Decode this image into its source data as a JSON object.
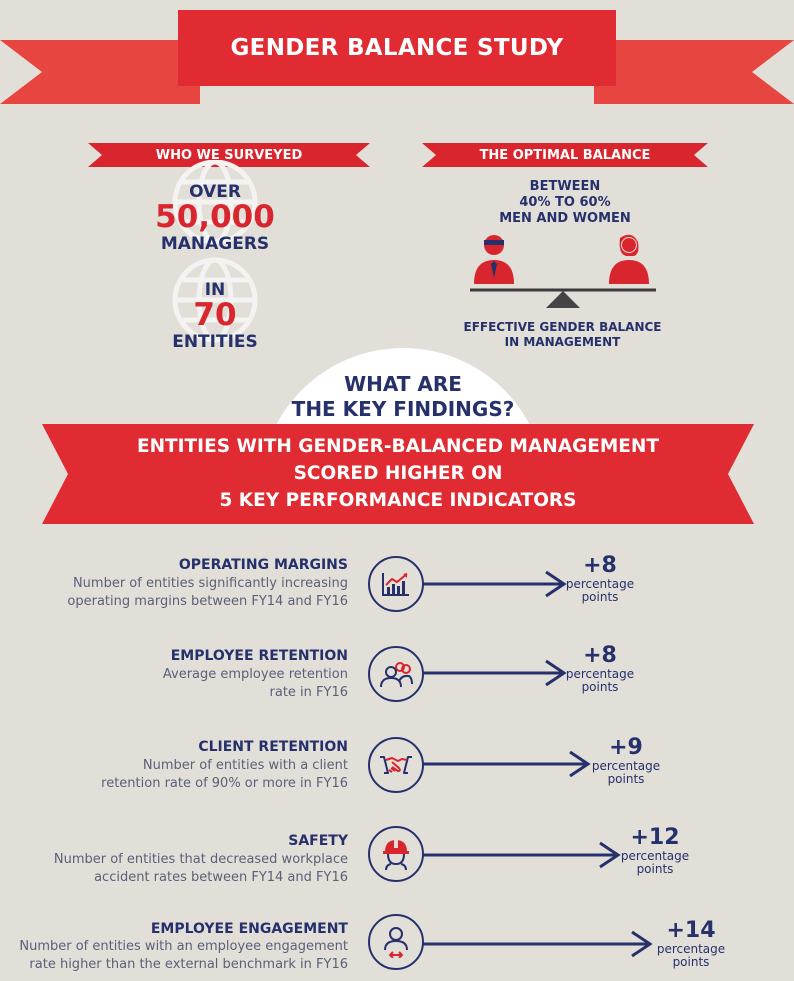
{
  "title": "GENDER BALANCE STUDY",
  "surveyed": {
    "banner": "WHO WE SURVEYED",
    "over": "OVER",
    "managers_count": "50,000",
    "managers_label": "MANAGERS",
    "in": "IN",
    "entities_count": "70",
    "entities_label": "ENTITIES"
  },
  "optimal": {
    "banner": "THE OPTIMAL BALANCE",
    "line1": "BETWEEN",
    "line2": "40% TO 60%",
    "line3": "MEN AND WOMEN",
    "caption1": "EFFECTIVE GENDER BALANCE",
    "caption2": "IN MANAGEMENT"
  },
  "findings": {
    "question1": "WHAT ARE",
    "question2": "THE KEY FINDINGS?",
    "headline1": "ENTITIES WITH GENDER-BALANCED MANAGEMENT",
    "headline2": "SCORED HIGHER ON",
    "headline3": "5 KEY PERFORMANCE INDICATORS"
  },
  "kpis": [
    {
      "title": "OPERATING MARGINS",
      "desc1": "Number of entities significantly increasing",
      "desc2": "operating margins between FY14 and FY16",
      "value": "+8",
      "unit1": "percentage",
      "unit2": "points",
      "icon": "chart-growth-icon"
    },
    {
      "title": "EMPLOYEE RETENTION",
      "desc1": "Average employee retention",
      "desc2": "rate in FY16",
      "value": "+8",
      "unit1": "percentage",
      "unit2": "points",
      "icon": "people-group-icon"
    },
    {
      "title": "CLIENT RETENTION",
      "desc1": "Number of entities with a client",
      "desc2": "retention rate of 90% or more in FY16",
      "value": "+9",
      "unit1": "percentage",
      "unit2": "points",
      "icon": "handshake-icon"
    },
    {
      "title": "SAFETY",
      "desc1": "Number of entities that decreased workplace",
      "desc2": "accident rates between FY14 and FY16",
      "value": "+12",
      "unit1": "percentage",
      "unit2": "points",
      "icon": "hard-hat-icon"
    },
    {
      "title": "EMPLOYEE ENGAGEMENT",
      "desc1": "Number of entities with an employee engagement",
      "desc2": "rate higher than the external benchmark in FY16",
      "value": "+14",
      "unit1": "percentage",
      "unit2": "points",
      "icon": "engaged-person-icon"
    }
  ],
  "colors": {
    "red": "#e02b32",
    "navy": "#26306b",
    "background": "#e2dfd9"
  }
}
